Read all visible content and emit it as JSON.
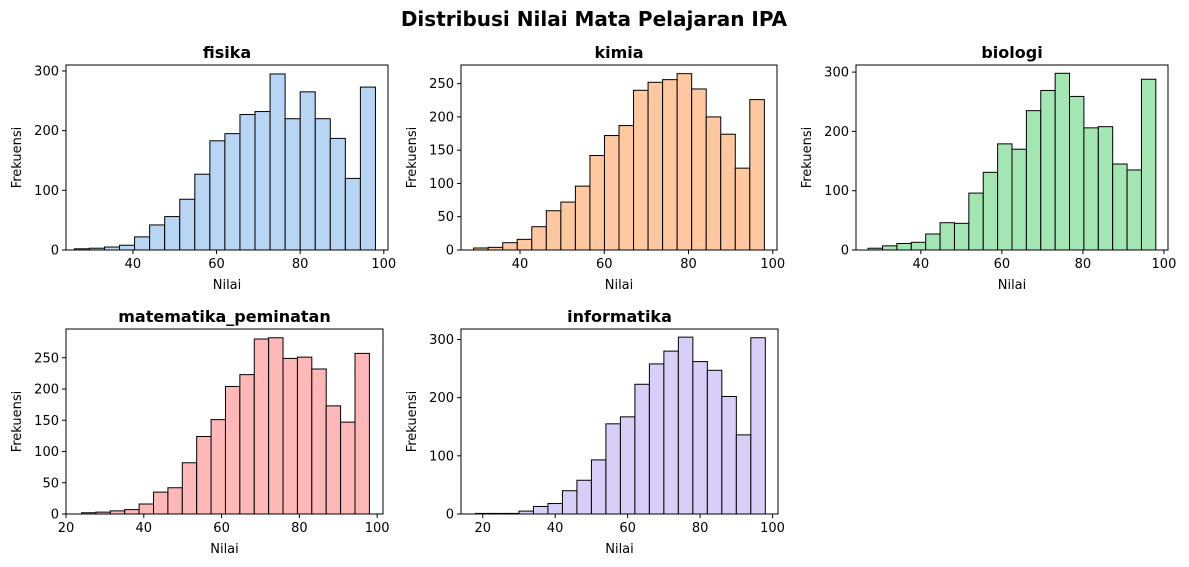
{
  "figure": {
    "suptitle": "Distribusi Nilai Mata Pelajaran IPA"
  },
  "chart_data": [
    {
      "type": "bar",
      "title": "fisika",
      "xlabel": "Nilai",
      "ylabel": "Frekuensi",
      "color": "#b9d5f4",
      "edge_color": "#000000",
      "bin_edges": [
        26,
        29.6,
        33.2,
        36.8,
        40.4,
        44,
        47.6,
        51.2,
        54.8,
        58.4,
        62,
        65.6,
        69.2,
        72.8,
        76.4,
        80,
        83.6,
        87.2,
        90.8,
        94.4,
        98
      ],
      "values": [
        2,
        3,
        5,
        8,
        22,
        42,
        56,
        85,
        127,
        183,
        195,
        227,
        232,
        295,
        220,
        265,
        220,
        187,
        120,
        273
      ],
      "xticks": [
        40,
        60,
        80,
        100
      ],
      "yticks": [
        0,
        100,
        200,
        300
      ],
      "xlim": [
        24,
        101
      ],
      "ylim": [
        0,
        310
      ]
    },
    {
      "type": "bar",
      "title": "kimia",
      "xlabel": "Nilai",
      "ylabel": "Frekuensi",
      "color": "#ffc8a0",
      "edge_color": "#000000",
      "bin_edges": [
        29,
        32.45,
        35.9,
        39.35,
        42.8,
        46.25,
        49.7,
        53.15,
        56.6,
        60.05,
        63.5,
        66.95,
        70.4,
        73.85,
        77.3,
        80.75,
        84.2,
        87.65,
        91.1,
        94.55,
        98
      ],
      "values": [
        3,
        4,
        11,
        16,
        35,
        59,
        72,
        96,
        142,
        172,
        187,
        240,
        252,
        256,
        265,
        242,
        200,
        174,
        123,
        226
      ],
      "xticks": [
        40,
        60,
        80,
        100
      ],
      "yticks": [
        0,
        50,
        100,
        150,
        200,
        250
      ],
      "xlim": [
        26,
        101
      ],
      "ylim": [
        0,
        278
      ]
    },
    {
      "type": "bar",
      "title": "biologi",
      "xlabel": "Nilai",
      "ylabel": "Frekuensi",
      "color": "#a3e6b4",
      "edge_color": "#000000",
      "bin_edges": [
        27,
        30.55,
        34.1,
        37.65,
        41.2,
        44.75,
        48.3,
        51.85,
        55.4,
        58.95,
        62.5,
        66.05,
        69.6,
        73.15,
        76.7,
        80.25,
        83.8,
        87.35,
        90.9,
        94.45,
        98
      ],
      "values": [
        3,
        7,
        11,
        13,
        27,
        46,
        45,
        96,
        131,
        179,
        170,
        235,
        269,
        298,
        259,
        206,
        208,
        145,
        135,
        288
      ],
      "xticks": [
        40,
        60,
        80,
        100
      ],
      "yticks": [
        0,
        100,
        200,
        300
      ],
      "xlim": [
        24,
        101
      ],
      "ylim": [
        0,
        312
      ]
    },
    {
      "type": "bar",
      "title": "matematika_peminatan",
      "xlabel": "Nilai",
      "ylabel": "Frekuensi",
      "color": "#ffb8b8",
      "edge_color": "#000000",
      "bin_edges": [
        24,
        27.7,
        31.4,
        35.1,
        38.8,
        42.5,
        46.2,
        49.9,
        53.6,
        57.3,
        61,
        64.7,
        68.4,
        72.1,
        75.8,
        79.5,
        83.2,
        86.9,
        90.6,
        94.3,
        98
      ],
      "values": [
        2,
        3,
        5,
        7,
        16,
        35,
        42,
        82,
        124,
        151,
        204,
        223,
        280,
        282,
        249,
        251,
        232,
        173,
        147,
        257
      ],
      "xticks": [
        20,
        40,
        60,
        80,
        100
      ],
      "yticks": [
        0,
        50,
        100,
        150,
        200,
        250
      ],
      "xlim": [
        20,
        101.5
      ],
      "ylim": [
        0,
        296
      ]
    },
    {
      "type": "bar",
      "title": "informatika",
      "xlabel": "Nilai",
      "ylabel": "Frekuensi",
      "color": "#d8cff9",
      "edge_color": "#000000",
      "bin_edges": [
        18,
        22,
        26,
        30,
        34,
        38,
        42,
        46,
        50,
        54,
        58,
        62,
        66,
        70,
        74,
        78,
        82,
        86,
        90,
        94,
        98
      ],
      "values": [
        1,
        1,
        1,
        5,
        13,
        18,
        40,
        58,
        93,
        155,
        167,
        223,
        258,
        280,
        304,
        262,
        247,
        202,
        136,
        303
      ],
      "xticks": [
        20,
        40,
        60,
        80,
        100
      ],
      "yticks": [
        0,
        100,
        200,
        300
      ],
      "xlim": [
        14,
        101.5
      ],
      "ylim": [
        0,
        318
      ]
    }
  ]
}
